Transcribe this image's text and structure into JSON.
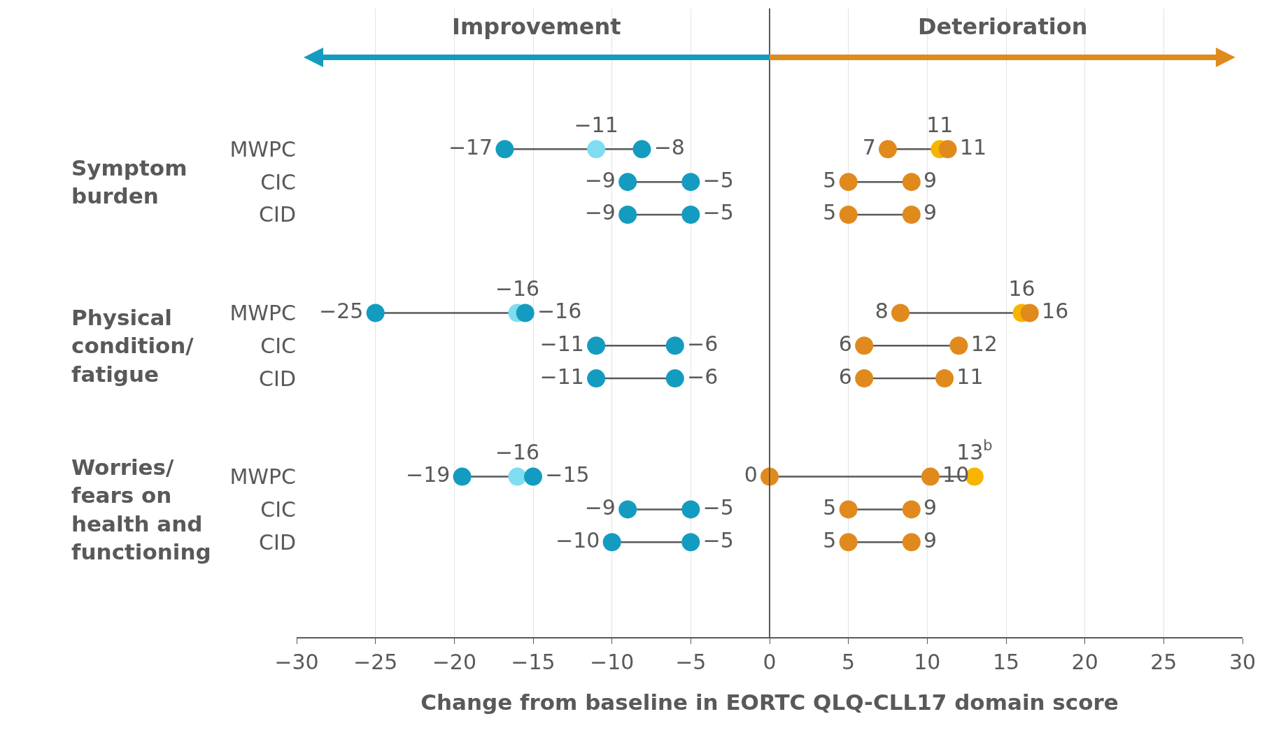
{
  "chart_data": {
    "type": "scatter",
    "orientation": "horizontal",
    "xlabel": "Change from baseline in EORTC QLQ-CLL17 domain score",
    "categories": [
      "MWPC",
      "CIC",
      "CID",
      null,
      null,
      "MWPC",
      "CIC",
      "CID",
      null,
      null,
      "MWPC",
      "CIC",
      "CID"
    ],
    "annotations": [
      "Improvement",
      "Deterioration",
      "Symptom burden",
      "Physical condition/ fatigue",
      "Worries/ fears on health and functioning"
    ],
    "series": [
      {
        "color": "#149cc0",
        "values": [
          -16.8,
          -9,
          -9,
          null,
          null,
          -25,
          -11,
          -11,
          null,
          null,
          -19.5,
          -9,
          -10
        ],
        "value_labels": [
          "−17",
          "−9",
          "−9",
          null,
          null,
          "−25",
          "−11",
          "−11",
          null,
          null,
          "−19",
          "−9",
          "−10"
        ]
      },
      {
        "color": "#7fddf2",
        "values": [
          -11,
          null,
          null,
          null,
          null,
          -16,
          null,
          null,
          null,
          null,
          -16,
          null,
          null
        ],
        "value_labels": [
          "−11",
          null,
          null,
          null,
          null,
          "−16",
          null,
          null,
          null,
          null,
          "−16",
          null,
          null
        ]
      },
      {
        "color": "#149cc0",
        "values": [
          -8.1,
          -5,
          -5,
          null,
          null,
          -15.5,
          -6,
          -6,
          null,
          null,
          -15,
          -5,
          -5
        ],
        "value_labels": [
          "−8",
          "−5",
          "−5",
          null,
          null,
          "−16",
          "−6",
          "−6",
          null,
          null,
          "−15",
          "−5",
          "−5"
        ]
      },
      {
        "color": "#e08a1e",
        "values": [
          7.5,
          5,
          5,
          null,
          null,
          8.3,
          6,
          6,
          null,
          null,
          0,
          5,
          5
        ],
        "value_labels": [
          "7",
          "5",
          "5",
          null,
          null,
          "8",
          "6",
          "6",
          null,
          null,
          "0",
          "5",
          "5"
        ]
      },
      {
        "color": "#f7b500",
        "values": [
          10.8,
          null,
          null,
          null,
          null,
          16,
          null,
          null,
          null,
          null,
          13,
          null,
          null
        ],
        "value_labels": [
          "11",
          null,
          null,
          null,
          null,
          "16",
          null,
          null,
          null,
          null,
          "13$^{b}$",
          null,
          null
        ]
      },
      {
        "color": "#e08a1e",
        "values": [
          11.3,
          9,
          9,
          null,
          null,
          16.5,
          12,
          11.1,
          null,
          null,
          10.2,
          9,
          9
        ],
        "value_labels": [
          "11",
          "9",
          "9",
          null,
          null,
          "16",
          "12",
          "11",
          null,
          null,
          "10",
          "9",
          "9"
        ]
      }
    ],
    "xlim": [
      -30,
      30
    ],
    "xticks": [
      {
        "value": -30,
        "label": "−30"
      },
      {
        "value": -25,
        "label": "−25"
      },
      {
        "value": -20,
        "label": "−20"
      },
      {
        "value": -15,
        "label": "−15"
      },
      {
        "value": -10,
        "label": "−10"
      },
      {
        "value": -5,
        "label": "−5"
      },
      0,
      5,
      10,
      15,
      20,
      25,
      30
    ],
    "ref_lines": [
      {
        "axis": "x",
        "value": 0,
        "color": "#595959"
      }
    ],
    "grid": "x",
    "marker": "circle"
  }
}
